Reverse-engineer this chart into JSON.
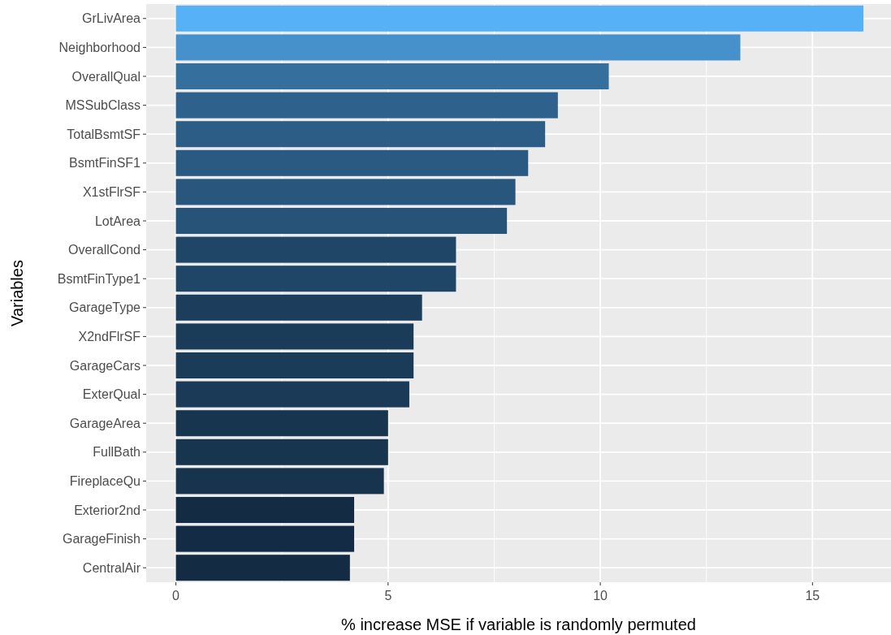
{
  "chart_data": {
    "type": "bar",
    "orientation": "horizontal",
    "xlabel": "% increase MSE if variable is randomly permuted",
    "ylabel": "Variables",
    "categories": [
      "GrLivArea",
      "Neighborhood",
      "OverallQual",
      "MSSubClass",
      "TotalBsmtSF",
      "BsmtFinSF1",
      "X1stFlrSF",
      "LotArea",
      "OverallCond",
      "BsmtFinType1",
      "GarageType",
      "X2ndFlrSF",
      "GarageCars",
      "ExterQual",
      "GarageArea",
      "FullBath",
      "FireplaceQu",
      "Exterior2nd",
      "GarageFinish",
      "CentralAir"
    ],
    "values": [
      16.2,
      13.3,
      10.2,
      9.0,
      8.7,
      8.3,
      8.0,
      7.8,
      6.6,
      6.6,
      5.8,
      5.6,
      5.6,
      5.5,
      5.0,
      5.0,
      4.9,
      4.2,
      4.2,
      4.1
    ],
    "colors": [
      "#56b1f7",
      "#4691cc",
      "#356f9e",
      "#2e618c",
      "#2c5d87",
      "#2a5981",
      "#29567d",
      "#275379",
      "#204667",
      "#204667",
      "#1c3e5c",
      "#1b3c59",
      "#1b3c58",
      "#1a3a57",
      "#183550",
      "#18354f",
      "#17334e",
      "#132c44",
      "#132b44",
      "#132b43"
    ],
    "xlim": [
      -0.7,
      16.85
    ],
    "xticks": [
      0,
      5,
      10,
      15
    ],
    "grid": true
  }
}
